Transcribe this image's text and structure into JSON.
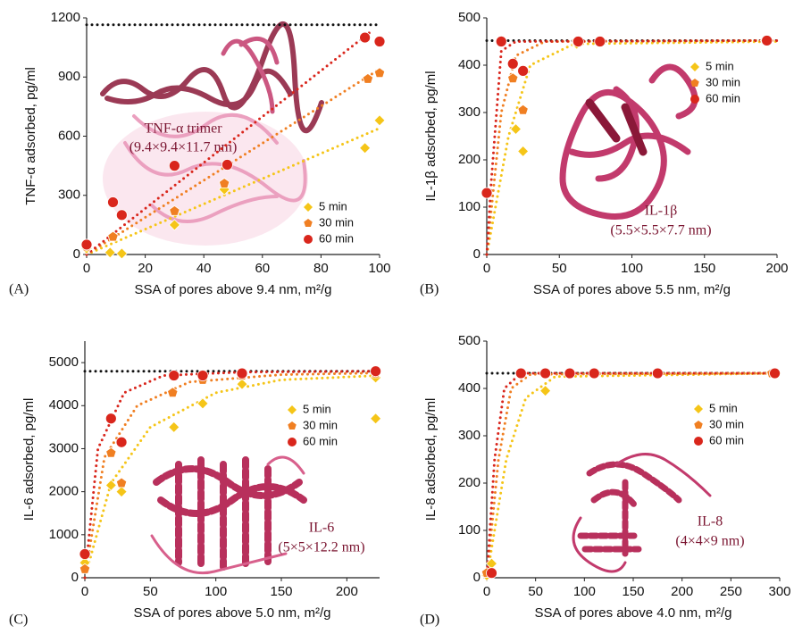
{
  "chart_data": [
    {
      "type": "scatter",
      "panel_label": "(A)",
      "xlabel": "SSA of pores above 9.4 nm, m²/g",
      "ylabel": "TNF-α adsorbed, pg/ml",
      "xlim": [
        0,
        100
      ],
      "xticks": [
        0,
        20,
        40,
        60,
        80,
        100
      ],
      "ylim": [
        0,
        1200
      ],
      "yticks": [
        0,
        300,
        600,
        900,
        1200
      ],
      "reference_line": 1165,
      "annotations": [
        "TNF-α trimer",
        "(9.4×9.4×11.7 nm)"
      ],
      "series": [
        {
          "name": "5 min",
          "color": "#f5c518",
          "marker": "diamond",
          "x": [
            0,
            8,
            12,
            30,
            47,
            95,
            100
          ],
          "values": [
            30,
            10,
            5,
            150,
            330,
            540,
            680
          ],
          "fit_x": [
            0,
            100
          ],
          "fit_values": [
            0,
            640
          ]
        },
        {
          "name": "30 min",
          "color": "#f07f22",
          "marker": "pentagon",
          "x": [
            0,
            9,
            12,
            30,
            47,
            96,
            100
          ],
          "values": [
            40,
            90,
            200,
            220,
            360,
            890,
            920
          ],
          "fit_x": [
            0,
            100
          ],
          "fit_values": [
            0,
            940
          ]
        },
        {
          "name": "60 min",
          "color": "#d9261c",
          "marker": "circle",
          "x": [
            0,
            9,
            12,
            30,
            48,
            95,
            100
          ],
          "values": [
            50,
            265,
            200,
            450,
            455,
            1100,
            1080
          ],
          "fit_x": [
            0,
            97
          ],
          "fit_values": [
            0,
            1130
          ]
        }
      ]
    },
    {
      "type": "scatter",
      "panel_label": "(B)",
      "xlabel": "SSA of pores above 5.5 nm, m²/g",
      "ylabel": "IL-1β adsorbed, pg/ml",
      "xlim": [
        0,
        200
      ],
      "xticks": [
        0,
        50,
        100,
        150,
        200
      ],
      "ylim": [
        0,
        500
      ],
      "yticks": [
        0,
        100,
        200,
        300,
        400,
        500
      ],
      "reference_line": 452,
      "annotations": [
        "IL-1β",
        "(5.5×5.5×7.7 nm)"
      ],
      "series": [
        {
          "name": "5 min",
          "color": "#f5c518",
          "marker": "diamond",
          "x": [
            10,
            20,
            25,
            62,
            78,
            192
          ],
          "values": [
            450,
            265,
            218,
            445,
            448,
            452
          ],
          "fit_x": [
            0,
            15,
            30,
            60,
            200
          ],
          "fit_values": [
            0,
            250,
            400,
            445,
            450
          ]
        },
        {
          "name": "30 min",
          "color": "#f07f22",
          "marker": "pentagon",
          "x": [
            10,
            18,
            25,
            62,
            78,
            193
          ],
          "values": [
            452,
            372,
            305,
            450,
            450,
            452
          ],
          "fit_x": [
            0,
            10,
            20,
            40,
            200
          ],
          "fit_values": [
            0,
            300,
            420,
            450,
            452
          ]
        },
        {
          "name": "60 min",
          "color": "#d9261c",
          "marker": "circle",
          "x": [
            0,
            10,
            18,
            25,
            63,
            78,
            193
          ],
          "values": [
            130,
            450,
            403,
            388,
            450,
            450,
            452
          ],
          "fit_x": [
            0,
            3,
            10,
            20,
            200
          ],
          "fit_values": [
            0,
            150,
            430,
            450,
            452
          ]
        }
      ]
    },
    {
      "type": "scatter",
      "panel_label": "(C)",
      "xlabel": "SSA of pores above 5.0 nm, m²/g",
      "ylabel": "IL-6 adsorbed, pg/ml",
      "xlim": [
        0,
        225
      ],
      "xticks": [
        0,
        50,
        100,
        150,
        200
      ],
      "ylim": [
        0,
        5500
      ],
      "yticks": [
        0,
        1000,
        2000,
        3000,
        4000,
        5000
      ],
      "reference_line": 4800,
      "annotations": [
        "IL-6",
        "(5×5×12.2 nm)"
      ],
      "series": [
        {
          "name": "5 min",
          "color": "#f5c518",
          "marker": "diamond",
          "x": [
            0,
            20,
            28,
            68,
            90,
            120,
            222,
            222
          ],
          "values": [
            350,
            2150,
            2000,
            3500,
            4050,
            4500,
            3700,
            4650
          ],
          "fit_x": [
            0,
            20,
            50,
            100,
            150,
            225
          ],
          "fit_values": [
            0,
            2200,
            3500,
            4300,
            4600,
            4700
          ]
        },
        {
          "name": "30 min",
          "color": "#f07f22",
          "marker": "pentagon",
          "x": [
            0,
            20,
            28,
            67,
            90,
            120,
            222
          ],
          "values": [
            200,
            2900,
            2200,
            4300,
            4600,
            4700,
            4750
          ],
          "fit_x": [
            0,
            15,
            40,
            80,
            150,
            225
          ],
          "fit_values": [
            0,
            2800,
            4000,
            4550,
            4720,
            4760
          ]
        },
        {
          "name": "60 min",
          "color": "#d9261c",
          "marker": "circle",
          "x": [
            0,
            20,
            28,
            68,
            90,
            120,
            222
          ],
          "values": [
            550,
            3700,
            3150,
            4700,
            4700,
            4750,
            4800
          ],
          "fit_x": [
            0,
            10,
            30,
            60,
            120,
            225
          ],
          "fit_values": [
            0,
            3000,
            4300,
            4700,
            4780,
            4800
          ]
        }
      ]
    },
    {
      "type": "scatter",
      "panel_label": "(D)",
      "xlabel": "SSA of pores above 4.0 nm, m²/g",
      "ylabel": "IL-8 adsorbed, pg/ml",
      "xlim": [
        0,
        300
      ],
      "xticks": [
        0,
        50,
        100,
        150,
        200,
        250,
        300
      ],
      "ylim": [
        0,
        500
      ],
      "yticks": [
        0,
        100,
        200,
        300,
        400,
        500
      ],
      "reference_line": 432,
      "annotations": [
        "IL-8",
        "(4×4×9 nm)"
      ],
      "series": [
        {
          "name": "5 min",
          "color": "#f5c518",
          "marker": "diamond",
          "x": [
            0,
            5,
            60,
            85,
            110,
            175,
            292
          ],
          "values": [
            5,
            30,
            395,
            430,
            432,
            432,
            432
          ],
          "fit_x": [
            0,
            20,
            40,
            70,
            300
          ],
          "fit_values": [
            0,
            250,
            380,
            425,
            432
          ]
        },
        {
          "name": "30 min",
          "color": "#f07f22",
          "marker": "pentagon",
          "x": [
            0,
            35,
            60,
            85,
            110,
            175,
            292
          ],
          "values": [
            10,
            430,
            430,
            430,
            432,
            432,
            432
          ],
          "fit_x": [
            0,
            12,
            25,
            45,
            300
          ],
          "fit_values": [
            0,
            250,
            400,
            430,
            432
          ]
        },
        {
          "name": "60 min",
          "color": "#d9261c",
          "marker": "circle",
          "x": [
            5,
            35,
            60,
            85,
            110,
            175,
            295
          ],
          "values": [
            10,
            432,
            432,
            432,
            432,
            432,
            432
          ],
          "fit_x": [
            0,
            8,
            18,
            35,
            300
          ],
          "fit_values": [
            0,
            250,
            400,
            432,
            432
          ]
        }
      ]
    }
  ]
}
